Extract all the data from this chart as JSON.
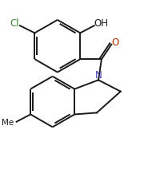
{
  "bg_color": "#ffffff",
  "line_color": "#1a1a1a",
  "bond_width": 1.4,
  "font_size": 8.5,
  "cl_color": "#3a8a3a",
  "n_color": "#4040b0",
  "o_color": "#b03000",
  "figsize": [
    1.95,
    2.12
  ],
  "dpi": 100,
  "xlim": [
    0,
    9.5
  ],
  "ylim": [
    0,
    10.3
  ]
}
